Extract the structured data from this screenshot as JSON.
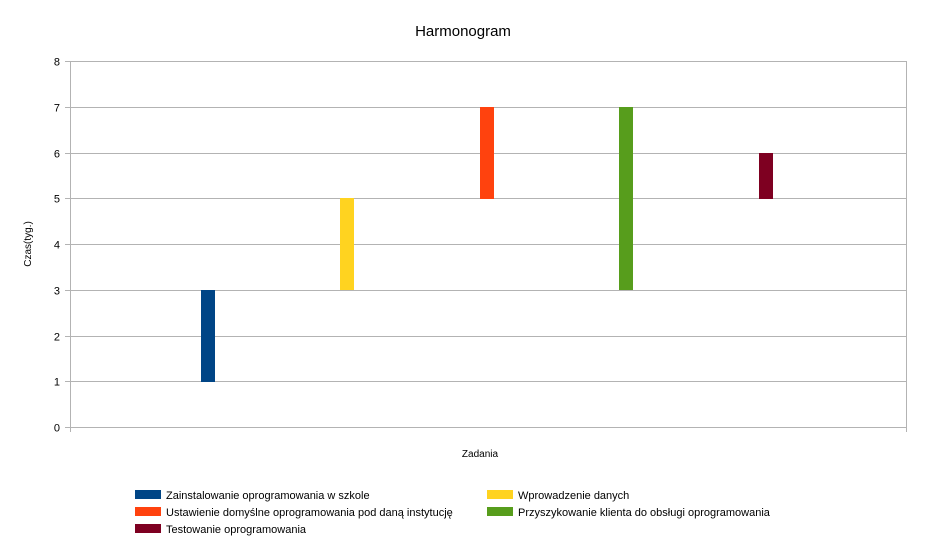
{
  "chart_data": {
    "type": "bar",
    "subtype": "floating-range",
    "title": "Harmonogram",
    "xlabel": "Zadania",
    "ylabel": "Czas(tyg.)",
    "ylim": [
      0,
      8
    ],
    "yticks": [
      "0",
      "1",
      "2",
      "3",
      "4",
      "5",
      "6",
      "7",
      "8"
    ],
    "grid": true,
    "legend_position": "bottom",
    "series": [
      {
        "name": "Zainstalowanie oprogramowania w szkole",
        "start": 1,
        "end": 3,
        "color": "#004586"
      },
      {
        "name": "Wprowadzenie danych",
        "start": 3,
        "end": 5,
        "color": "#ffd320"
      },
      {
        "name": "Ustawienie domyślne oprogramowania pod daną instytucję",
        "start": 5,
        "end": 7,
        "color": "#ff420e"
      },
      {
        "name": "Przyszykowanie klienta do obsługi oprogramowania",
        "start": 3,
        "end": 7,
        "color": "#579d1c"
      },
      {
        "name": "Testowanie oprogramowania",
        "start": 5,
        "end": 6,
        "color": "#7e0021"
      }
    ]
  }
}
